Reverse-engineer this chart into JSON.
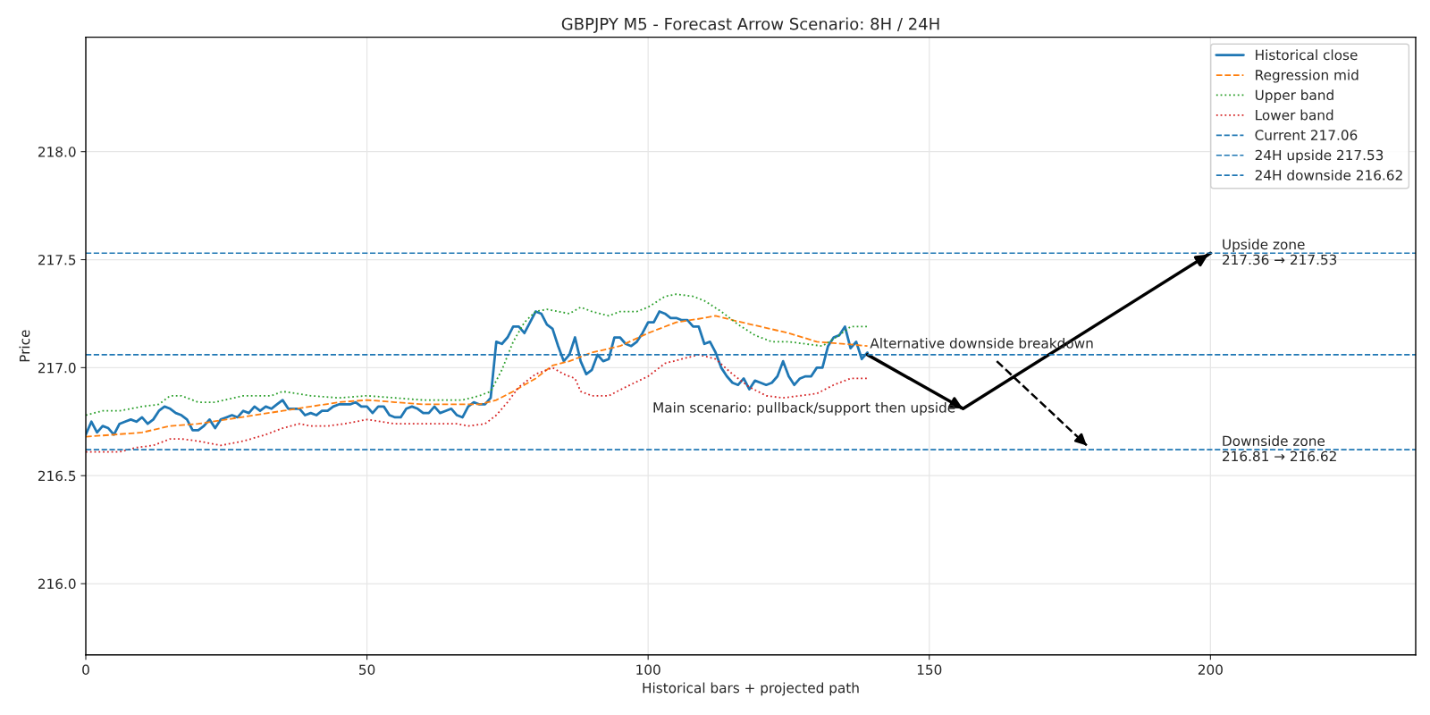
{
  "chart_data": {
    "type": "line",
    "title": "GBPJPY M5 - Forecast Arrow Scenario: 8H / 24H",
    "xlabel": "Historical bars + projected path",
    "ylabel": "Price",
    "xlim": [
      0,
      236.5
    ],
    "ylim": [
      215.67,
      218.53
    ],
    "xticks": [
      0,
      50,
      100,
      150,
      200
    ],
    "yticks": [
      {
        "value": 216,
        "label": "216.0"
      },
      {
        "value": 216.5,
        "label": "216.5"
      },
      {
        "value": 217,
        "label": "217.0"
      },
      {
        "value": 217.5,
        "label": "217.5"
      },
      {
        "value": 218,
        "label": "218.0"
      }
    ],
    "grid": true,
    "legend": "top right",
    "series": [
      {
        "name": "Historical close",
        "color": "#1f77b4",
        "line_style": "solid",
        "x": [
          0,
          1,
          2,
          3,
          4,
          5,
          6,
          7,
          8,
          9,
          10,
          11,
          12,
          13,
          14,
          15,
          16,
          17,
          18,
          19,
          20,
          21,
          22,
          23,
          24,
          25,
          26,
          27,
          28,
          29,
          30,
          31,
          32,
          33,
          34,
          35,
          36,
          37,
          38,
          39,
          40,
          41,
          42,
          43,
          44,
          45,
          46,
          47,
          48,
          49,
          50,
          51,
          52,
          53,
          54,
          55,
          56,
          57,
          58,
          59,
          60,
          61,
          62,
          63,
          64,
          65,
          66,
          67,
          68,
          69,
          70,
          71,
          72,
          73,
          74,
          75,
          76,
          77,
          78,
          79,
          80,
          81,
          82,
          83,
          84,
          85,
          86,
          87,
          88,
          89,
          90,
          91,
          92,
          93,
          94,
          95,
          96,
          97,
          98,
          99,
          100,
          101,
          102,
          103,
          104,
          105,
          106,
          107,
          108,
          109,
          110,
          111,
          112,
          113,
          114,
          115,
          116,
          117,
          118,
          119,
          120,
          121,
          122,
          123,
          124,
          125,
          126,
          127,
          128,
          129,
          130,
          131,
          132,
          133,
          134,
          135,
          136,
          137,
          138,
          139
        ],
        "values": [
          216.69,
          216.75,
          216.7,
          216.73,
          216.72,
          216.69,
          216.74,
          216.75,
          216.76,
          216.75,
          216.77,
          216.74,
          216.76,
          216.8,
          216.82,
          216.81,
          216.79,
          216.78,
          216.76,
          216.71,
          216.71,
          216.73,
          216.76,
          216.72,
          216.76,
          216.77,
          216.78,
          216.77,
          216.8,
          216.79,
          216.82,
          216.8,
          216.82,
          216.81,
          216.83,
          216.85,
          216.81,
          216.81,
          216.81,
          216.78,
          216.79,
          216.78,
          216.8,
          216.8,
          216.82,
          216.83,
          216.83,
          216.83,
          216.84,
          216.82,
          216.82,
          216.79,
          216.82,
          216.82,
          216.78,
          216.77,
          216.77,
          216.81,
          216.82,
          216.81,
          216.79,
          216.79,
          216.82,
          216.79,
          216.8,
          216.81,
          216.78,
          216.77,
          216.82,
          216.84,
          216.83,
          216.83,
          216.86,
          217.12,
          217.11,
          217.14,
          217.19,
          217.19,
          217.16,
          217.21,
          217.26,
          217.25,
          217.2,
          217.18,
          217.1,
          217.03,
          217.06,
          217.14,
          217.03,
          216.97,
          216.99,
          217.06,
          217.03,
          217.04,
          217.14,
          217.14,
          217.11,
          217.1,
          217.12,
          217.16,
          217.21,
          217.21,
          217.26,
          217.25,
          217.23,
          217.23,
          217.22,
          217.22,
          217.19,
          217.19,
          217.11,
          217.12,
          217.07,
          217.0,
          216.96,
          216.93,
          216.92,
          216.95,
          216.9,
          216.94,
          216.93,
          216.92,
          216.93,
          216.96,
          217.03,
          216.96,
          216.92,
          216.95,
          216.96,
          216.96,
          217.0,
          217.0,
          217.1,
          217.14,
          217.15,
          217.19,
          217.09,
          217.12,
          217.04,
          217.07
        ]
      },
      {
        "name": "Regression mid",
        "color": "#ff7f0e",
        "line_style": "dashed",
        "x": [
          0,
          5,
          10,
          15,
          20,
          25,
          30,
          35,
          40,
          45,
          50,
          55,
          60,
          65,
          70,
          73,
          76,
          80,
          83,
          86,
          90,
          95,
          100,
          105,
          110,
          112,
          115,
          120,
          125,
          130,
          135,
          139
        ],
        "values": [
          216.68,
          216.69,
          216.7,
          216.73,
          216.74,
          216.76,
          216.78,
          216.8,
          216.82,
          216.84,
          216.85,
          216.84,
          216.83,
          216.83,
          216.83,
          216.85,
          216.89,
          216.95,
          217.01,
          217.03,
          217.07,
          217.1,
          217.16,
          217.21,
          217.23,
          217.24,
          217.22,
          217.19,
          217.16,
          217.12,
          217.11,
          217.1
        ]
      },
      {
        "name": "Upper band",
        "color": "#2ca02c",
        "line_style": "dotted",
        "x": [
          0,
          3,
          6,
          10,
          13,
          15,
          17,
          20,
          23,
          28,
          33,
          35,
          40,
          45,
          50,
          55,
          60,
          65,
          67,
          70,
          72,
          74,
          76,
          78,
          80,
          82,
          84,
          86,
          88,
          90,
          93,
          95,
          98,
          100,
          103,
          105,
          108,
          110,
          113,
          116,
          119,
          122,
          125,
          128,
          131,
          134,
          136,
          139
        ],
        "values": [
          216.78,
          216.8,
          216.8,
          216.82,
          216.83,
          216.87,
          216.87,
          216.84,
          216.84,
          216.87,
          216.87,
          216.89,
          216.87,
          216.86,
          216.87,
          216.86,
          216.85,
          216.85,
          216.85,
          216.87,
          216.89,
          216.99,
          217.12,
          217.21,
          217.26,
          217.27,
          217.26,
          217.25,
          217.28,
          217.26,
          217.24,
          217.26,
          217.26,
          217.28,
          217.33,
          217.34,
          217.33,
          217.31,
          217.26,
          217.2,
          217.15,
          217.12,
          217.12,
          217.11,
          217.1,
          217.15,
          217.19,
          217.19
        ]
      },
      {
        "name": "Lower band",
        "color": "#d62728",
        "line_style": "dotted",
        "x": [
          0,
          3,
          6,
          9,
          12,
          15,
          17,
          20,
          24,
          28,
          32,
          35,
          38,
          40,
          43,
          46,
          50,
          55,
          58,
          62,
          66,
          68,
          71,
          73,
          75,
          77,
          80,
          83,
          85,
          87,
          88,
          90,
          93,
          96,
          100,
          103,
          106,
          109,
          112,
          115,
          118,
          121,
          124,
          127,
          130,
          133,
          136,
          139
        ],
        "values": [
          216.61,
          216.61,
          216.61,
          216.63,
          216.64,
          216.67,
          216.67,
          216.66,
          216.64,
          216.66,
          216.69,
          216.72,
          216.74,
          216.73,
          216.73,
          216.74,
          216.76,
          216.74,
          216.74,
          216.74,
          216.74,
          216.73,
          216.74,
          216.78,
          216.84,
          216.91,
          216.97,
          217.0,
          216.97,
          216.95,
          216.89,
          216.87,
          216.87,
          216.91,
          216.96,
          217.02,
          217.04,
          217.06,
          217.04,
          216.97,
          216.91,
          216.87,
          216.86,
          216.87,
          216.88,
          216.92,
          216.95,
          216.95
        ]
      },
      {
        "color": "#000000",
        "line_style": "solid",
        "x": [
          139,
          156,
          200
        ],
        "values": [
          217.06,
          216.81,
          217.53
        ]
      },
      {
        "color": "#000000",
        "line_style": "dashed",
        "x": [
          162,
          178
        ],
        "values": [
          217.03,
          216.64
        ]
      }
    ],
    "ref_lines": [
      {
        "axis": "y",
        "value": 217.06,
        "label": "Current 217.06",
        "color": "#1f77b4",
        "line_style": "dashed"
      },
      {
        "axis": "y",
        "value": 217.53,
        "label": "24H upside 217.53",
        "color": "#1f77b4",
        "line_style": "dashed"
      },
      {
        "axis": "y",
        "value": 216.62,
        "label": "24H downside 216.62",
        "color": "#1f77b4",
        "line_style": "dashed"
      }
    ],
    "annotations": [
      {
        "text": "Main scenario: pullback/support then upside",
        "x": 156,
        "y": 216.81
      },
      {
        "text": "Alternative downside breakdown",
        "x": 139,
        "y": 217.06
      },
      {
        "text": "Upside zone\n217.36 → 217.53",
        "x": 202,
        "y": 217.53
      },
      {
        "text": "Downside zone\n216.81 → 216.62",
        "x": 202,
        "y": 216.62
      }
    ]
  }
}
